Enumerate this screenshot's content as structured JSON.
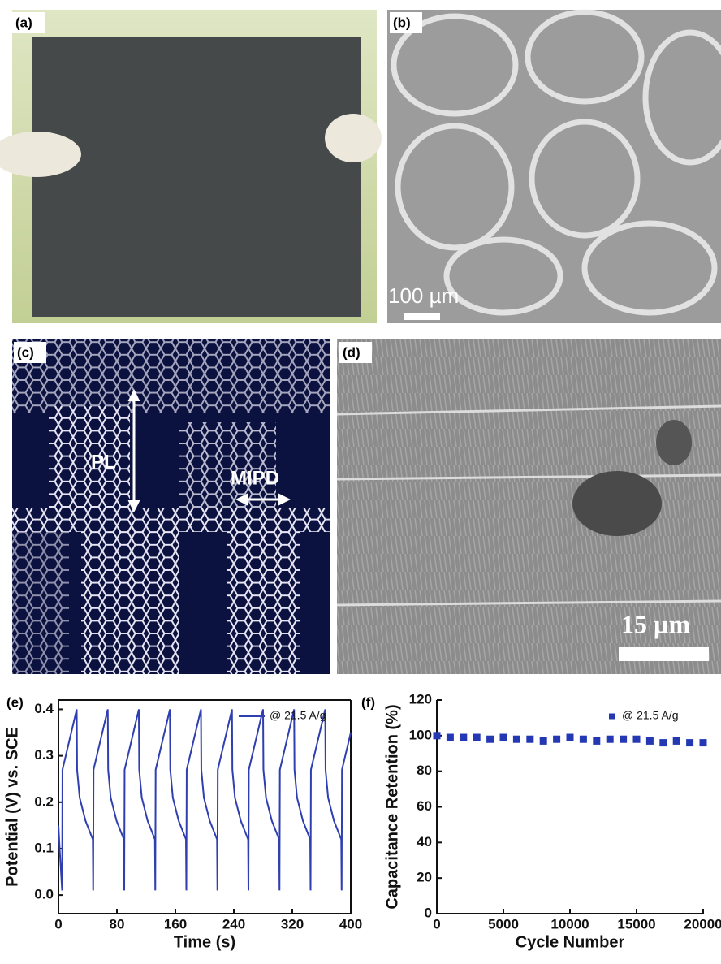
{
  "panels": [
    {
      "label": "(a)"
    },
    {
      "label": "(b)",
      "scale_bar": "100 µm"
    },
    {
      "label": "(c)",
      "annotations": [
        "PL",
        "MIPD"
      ]
    },
    {
      "label": "(d)",
      "scale_bar": "15 µm"
    },
    {
      "label": "(e)"
    },
    {
      "label": "(f)"
    }
  ],
  "chart_data": [
    {
      "type": "line",
      "xlabel": "Time (s)",
      "ylabel": "Potential (V) vs. SCE",
      "xlim": [
        0,
        400
      ],
      "xticks": [
        0,
        80,
        160,
        240,
        320,
        400
      ],
      "ylim": [
        -0.04,
        0.42
      ],
      "yticks": [
        {
          "value": 0,
          "label": "0.0"
        },
        0.1,
        0.2,
        0.3,
        0.4
      ],
      "frame": true,
      "legend": "upper right",
      "x": [
        0,
        2,
        5,
        5.5,
        25,
        25.5,
        29,
        37,
        47,
        47.5,
        48,
        67.5,
        68,
        71.5,
        79.5,
        89.5,
        90,
        90.5,
        110,
        110.5,
        114,
        122,
        132,
        132.5,
        133,
        152.5,
        153,
        156.5,
        164.5,
        174.5,
        175,
        175.5,
        195,
        195.5,
        199,
        207,
        217,
        217.5,
        218,
        237.5,
        238,
        241.5,
        249.5,
        259.5,
        260,
        260.5,
        280,
        280.5,
        284,
        292,
        302,
        302.5,
        303,
        322.5,
        323,
        326.5,
        334.5,
        344.5,
        345,
        345.5,
        365,
        365.5,
        369,
        377,
        387,
        387.5,
        388,
        400
      ],
      "series": [
        {
          "name": "@ 21.5 A/g",
          "color": "#2f3fb0",
          "values": [
            0.15,
            0.09,
            0.01,
            0.27,
            0.4,
            0.27,
            0.21,
            0.16,
            0.12,
            0.01,
            0.27,
            0.4,
            0.27,
            0.21,
            0.16,
            0.12,
            0.01,
            0.27,
            0.4,
            0.27,
            0.21,
            0.16,
            0.12,
            0.01,
            0.27,
            0.4,
            0.27,
            0.21,
            0.16,
            0.12,
            0.01,
            0.27,
            0.4,
            0.27,
            0.21,
            0.16,
            0.12,
            0.01,
            0.27,
            0.4,
            0.27,
            0.21,
            0.16,
            0.12,
            0.01,
            0.27,
            0.4,
            0.27,
            0.21,
            0.16,
            0.12,
            0.01,
            0.27,
            0.4,
            0.27,
            0.21,
            0.16,
            0.12,
            0.01,
            0.27,
            0.4,
            0.27,
            0.21,
            0.16,
            0.12,
            0.01,
            0.27,
            0.35
          ]
        }
      ]
    },
    {
      "type": "scatter",
      "xlabel": "Cycle Number",
      "ylabel": "Capacitance Retention (%)",
      "xlim": [
        0,
        20000
      ],
      "xticks": [
        0,
        5000,
        10000,
        15000,
        20000
      ],
      "ylim": [
        0,
        120
      ],
      "yticks": [
        0,
        20,
        40,
        60,
        80,
        100,
        120
      ],
      "frame": false,
      "legend": "upper right",
      "x": [
        0,
        1000,
        2000,
        3000,
        4000,
        5000,
        6000,
        7000,
        8000,
        9000,
        10000,
        11000,
        12000,
        13000,
        14000,
        15000,
        16000,
        17000,
        18000,
        19000,
        20000
      ],
      "series": [
        {
          "name": "@ 21.5 A/g",
          "color": "#2438b4",
          "values": [
            100,
            99,
            99,
            99,
            98,
            99,
            98,
            98,
            97,
            98,
            99,
            98,
            97,
            98,
            98,
            98,
            97,
            96,
            97,
            96,
            96
          ]
        }
      ]
    }
  ]
}
